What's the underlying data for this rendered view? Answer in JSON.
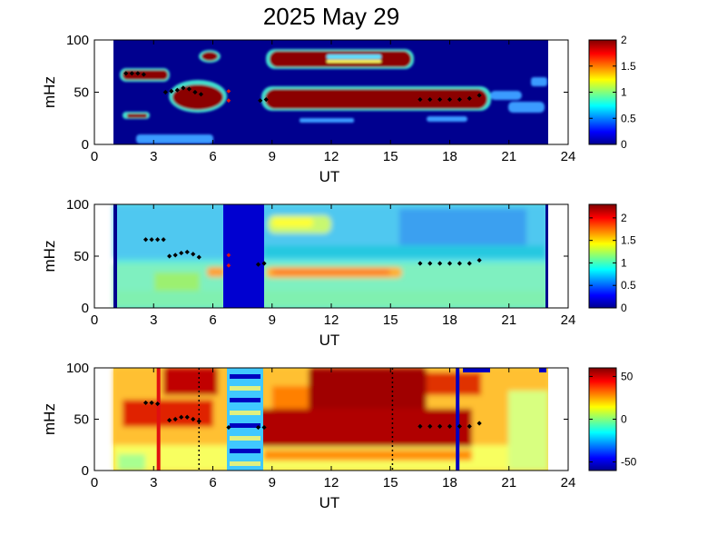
{
  "title": "2025 May 29",
  "chart_data": [
    {
      "type": "heatmap",
      "name": "panel-1",
      "xlabel": "UT",
      "ylabel": "mHz",
      "xlim": [
        0,
        24
      ],
      "ylim": [
        0,
        100
      ],
      "xticks": [
        "0",
        "3",
        "6",
        "9",
        "12",
        "15",
        "18",
        "21",
        "24"
      ],
      "yticks": [
        "0",
        "50",
        "100"
      ],
      "colorbar": {
        "range": [
          0,
          2
        ],
        "ticks": [
          "0",
          "0.5",
          "1",
          "1.5",
          "2"
        ]
      },
      "data_span_hours": [
        1,
        23
      ],
      "markers": [
        {
          "x": 1.6,
          "y": 68
        },
        {
          "x": 1.9,
          "y": 68
        },
        {
          "x": 2.2,
          "y": 68
        },
        {
          "x": 2.5,
          "y": 67
        },
        {
          "x": 3.6,
          "y": 50
        },
        {
          "x": 3.9,
          "y": 51
        },
        {
          "x": 4.2,
          "y": 52
        },
        {
          "x": 4.5,
          "y": 54
        },
        {
          "x": 4.8,
          "y": 53
        },
        {
          "x": 5.1,
          "y": 50
        },
        {
          "x": 5.4,
          "y": 48
        },
        {
          "x": 8.4,
          "y": 42
        },
        {
          "x": 8.7,
          "y": 43
        },
        {
          "x": 16.5,
          "y": 43
        },
        {
          "x": 17.0,
          "y": 43
        },
        {
          "x": 17.5,
          "y": 43
        },
        {
          "x": 18.0,
          "y": 43
        },
        {
          "x": 18.5,
          "y": 43
        },
        {
          "x": 19.0,
          "y": 44
        },
        {
          "x": 19.5,
          "y": 47
        }
      ],
      "red_markers": [
        {
          "x": 6.8,
          "y": 51
        },
        {
          "x": 6.8,
          "y": 42
        }
      ]
    },
    {
      "type": "heatmap",
      "name": "panel-2",
      "xlabel": "UT",
      "ylabel": "mHz",
      "xlim": [
        0,
        24
      ],
      "ylim": [
        0,
        100
      ],
      "xticks": [
        "0",
        "3",
        "6",
        "9",
        "12",
        "15",
        "18",
        "21",
        "24"
      ],
      "yticks": [
        "0",
        "50",
        "100"
      ],
      "colorbar": {
        "range": [
          0,
          2.3
        ],
        "ticks": [
          "0",
          "0.5",
          "1",
          "1.5",
          "2"
        ]
      },
      "data_span_hours": [
        1,
        23
      ],
      "gap_hours": [
        6.5,
        8.7
      ],
      "markers": [
        {
          "x": 2.6,
          "y": 66
        },
        {
          "x": 2.9,
          "y": 66
        },
        {
          "x": 3.2,
          "y": 66
        },
        {
          "x": 3.5,
          "y": 66
        },
        {
          "x": 3.8,
          "y": 50
        },
        {
          "x": 4.1,
          "y": 51
        },
        {
          "x": 4.4,
          "y": 53
        },
        {
          "x": 4.7,
          "y": 54
        },
        {
          "x": 5.0,
          "y": 52
        },
        {
          "x": 5.3,
          "y": 49
        },
        {
          "x": 8.3,
          "y": 42
        },
        {
          "x": 8.6,
          "y": 43
        },
        {
          "x": 16.5,
          "y": 43
        },
        {
          "x": 17.0,
          "y": 43
        },
        {
          "x": 17.5,
          "y": 43
        },
        {
          "x": 18.0,
          "y": 43
        },
        {
          "x": 18.5,
          "y": 43
        },
        {
          "x": 19.0,
          "y": 43
        },
        {
          "x": 19.5,
          "y": 46
        }
      ],
      "red_markers": [
        {
          "x": 6.8,
          "y": 51
        },
        {
          "x": 6.8,
          "y": 41
        }
      ]
    },
    {
      "type": "heatmap",
      "name": "panel-3",
      "xlabel": "UT",
      "ylabel": "mHz",
      "xlim": [
        0,
        24
      ],
      "ylim": [
        0,
        100
      ],
      "xticks": [
        "0",
        "3",
        "6",
        "9",
        "12",
        "15",
        "18",
        "21",
        "24"
      ],
      "yticks": [
        "0",
        "50",
        "100"
      ],
      "colorbar": {
        "range": [
          -60,
          60
        ],
        "ticks": [
          "-50",
          "0",
          "50"
        ]
      },
      "data_span_hours": [
        1,
        23
      ],
      "vertical_lines": [
        {
          "x": 3.25,
          "style": "solid",
          "color": "#e01010"
        },
        {
          "x": 5.3,
          "style": "dotted",
          "color": "#000000"
        },
        {
          "x": 15.1,
          "style": "dotted",
          "color": "#000000"
        },
        {
          "x": 18.4,
          "style": "solid",
          "color": "#0000c0"
        }
      ],
      "markers": [
        {
          "x": 2.6,
          "y": 66
        },
        {
          "x": 2.9,
          "y": 66
        },
        {
          "x": 3.2,
          "y": 65
        },
        {
          "x": 3.8,
          "y": 49
        },
        {
          "x": 4.1,
          "y": 50
        },
        {
          "x": 4.4,
          "y": 52
        },
        {
          "x": 4.7,
          "y": 52
        },
        {
          "x": 5.0,
          "y": 50
        },
        {
          "x": 5.3,
          "y": 48
        },
        {
          "x": 6.8,
          "y": 42
        },
        {
          "x": 8.3,
          "y": 42
        },
        {
          "x": 8.6,
          "y": 42
        },
        {
          "x": 16.5,
          "y": 43
        },
        {
          "x": 17.0,
          "y": 43
        },
        {
          "x": 17.5,
          "y": 43
        },
        {
          "x": 18.0,
          "y": 43
        },
        {
          "x": 18.5,
          "y": 43
        },
        {
          "x": 19.0,
          "y": 43
        },
        {
          "x": 19.5,
          "y": 46
        }
      ]
    }
  ]
}
